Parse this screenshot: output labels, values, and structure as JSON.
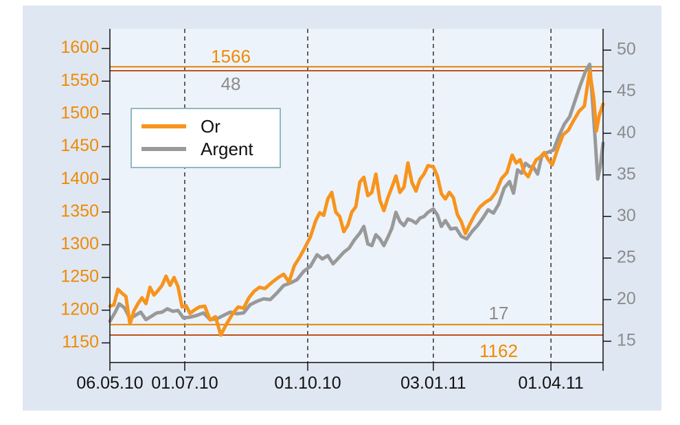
{
  "chart_data": {
    "type": "line",
    "x_labels": [
      "06.05.10",
      "01.07.10",
      "01.10.10",
      "03.01.11",
      "01.04.11"
    ],
    "x_label_dates": [
      "2010-05-06",
      "2010-07-01",
      "2010-10-01",
      "2011-01-03",
      "2011-04-01"
    ],
    "xlim": [
      "2010-05-06",
      "2011-05-10"
    ],
    "left_axis": {
      "ticks": [
        1150,
        1200,
        1250,
        1300,
        1350,
        1400,
        1450,
        1500,
        1550,
        1600
      ],
      "range": [
        1150,
        1600
      ],
      "color": "#f08a00"
    },
    "right_axis": {
      "ticks": [
        15,
        20,
        25,
        30,
        35,
        40,
        45,
        50
      ],
      "range": [
        15,
        50
      ],
      "color": "#8c8c8c"
    },
    "vertical_gridlines": [
      "2010-07-01",
      "2010-10-01",
      "2011-01-03",
      "2011-04-01"
    ],
    "grid": "vertical dashed lines",
    "legend": {
      "placement": "upper-left",
      "entries": [
        "Or",
        "Argent"
      ]
    },
    "series": [
      {
        "name": "Or",
        "axis": "left",
        "color": "#f7941d",
        "points": [
          [
            "2010-05-06",
            1206
          ],
          [
            "2010-05-09",
            1208
          ],
          [
            "2010-05-12",
            1232
          ],
          [
            "2010-05-15",
            1226
          ],
          [
            "2010-05-18",
            1221
          ],
          [
            "2010-05-21",
            1179
          ],
          [
            "2010-05-24",
            1199
          ],
          [
            "2010-05-27",
            1210
          ],
          [
            "2010-05-30",
            1219
          ],
          [
            "2010-06-02",
            1210
          ],
          [
            "2010-06-05",
            1235
          ],
          [
            "2010-06-08",
            1223
          ],
          [
            "2010-06-11",
            1230
          ],
          [
            "2010-06-14",
            1238
          ],
          [
            "2010-06-17",
            1252
          ],
          [
            "2010-06-20",
            1238
          ],
          [
            "2010-06-23",
            1250
          ],
          [
            "2010-06-26",
            1236
          ],
          [
            "2010-06-29",
            1205
          ],
          [
            "2010-07-02",
            1207
          ],
          [
            "2010-07-05",
            1195
          ],
          [
            "2010-07-08",
            1200
          ],
          [
            "2010-07-12",
            1205
          ],
          [
            "2010-07-16",
            1206
          ],
          [
            "2010-07-20",
            1185
          ],
          [
            "2010-07-24",
            1190
          ],
          [
            "2010-07-28",
            1162
          ],
          [
            "2010-08-01",
            1178
          ],
          [
            "2010-08-06",
            1195
          ],
          [
            "2010-08-10",
            1205
          ],
          [
            "2010-08-14",
            1203
          ],
          [
            "2010-08-18",
            1219
          ],
          [
            "2010-08-22",
            1229
          ],
          [
            "2010-08-26",
            1235
          ],
          [
            "2010-08-30",
            1233
          ],
          [
            "2010-09-04",
            1242
          ],
          [
            "2010-09-09",
            1250
          ],
          [
            "2010-09-13",
            1255
          ],
          [
            "2010-09-17",
            1243
          ],
          [
            "2010-09-21",
            1268
          ],
          [
            "2010-09-25",
            1281
          ],
          [
            "2010-09-29",
            1296
          ],
          [
            "2010-10-03",
            1312
          ],
          [
            "2010-10-07",
            1337
          ],
          [
            "2010-10-10",
            1349
          ],
          [
            "2010-10-13",
            1345
          ],
          [
            "2010-10-16",
            1370
          ],
          [
            "2010-10-19",
            1380
          ],
          [
            "2010-10-22",
            1350
          ],
          [
            "2010-10-25",
            1343
          ],
          [
            "2010-10-28",
            1320
          ],
          [
            "2010-10-31",
            1330
          ],
          [
            "2010-11-03",
            1350
          ],
          [
            "2010-11-06",
            1358
          ],
          [
            "2010-11-09",
            1396
          ],
          [
            "2010-11-12",
            1403
          ],
          [
            "2010-11-15",
            1375
          ],
          [
            "2010-11-18",
            1380
          ],
          [
            "2010-11-21",
            1408
          ],
          [
            "2010-11-24",
            1368
          ],
          [
            "2010-11-27",
            1352
          ],
          [
            "2010-11-30",
            1372
          ],
          [
            "2010-12-03",
            1388
          ],
          [
            "2010-12-06",
            1405
          ],
          [
            "2010-12-09",
            1380
          ],
          [
            "2010-12-12",
            1388
          ],
          [
            "2010-12-15",
            1425
          ],
          [
            "2010-12-18",
            1395
          ],
          [
            "2010-12-21",
            1382
          ],
          [
            "2010-12-24",
            1400
          ],
          [
            "2010-12-27",
            1408
          ],
          [
            "2010-12-30",
            1421
          ],
          [
            "2011-01-03",
            1419
          ],
          [
            "2011-01-06",
            1405
          ],
          [
            "2011-01-09",
            1378
          ],
          [
            "2011-01-12",
            1370
          ],
          [
            "2011-01-15",
            1380
          ],
          [
            "2011-01-18",
            1372
          ],
          [
            "2011-01-21",
            1346
          ],
          [
            "2011-01-24",
            1335
          ],
          [
            "2011-01-27",
            1317
          ],
          [
            "2011-01-30",
            1330
          ],
          [
            "2011-02-03",
            1346
          ],
          [
            "2011-02-07",
            1358
          ],
          [
            "2011-02-11",
            1365
          ],
          [
            "2011-02-15",
            1370
          ],
          [
            "2011-02-19",
            1381
          ],
          [
            "2011-02-23",
            1401
          ],
          [
            "2011-02-27",
            1410
          ],
          [
            "2011-03-03",
            1437
          ],
          [
            "2011-03-06",
            1425
          ],
          [
            "2011-03-09",
            1430
          ],
          [
            "2011-03-12",
            1411
          ],
          [
            "2011-03-15",
            1404
          ],
          [
            "2011-03-18",
            1418
          ],
          [
            "2011-03-21",
            1430
          ],
          [
            "2011-03-24",
            1434
          ],
          [
            "2011-03-27",
            1441
          ],
          [
            "2011-03-30",
            1430
          ],
          [
            "2011-04-02",
            1422
          ],
          [
            "2011-04-06",
            1446
          ],
          [
            "2011-04-10",
            1468
          ],
          [
            "2011-04-14",
            1475
          ],
          [
            "2011-04-18",
            1490
          ],
          [
            "2011-04-22",
            1504
          ],
          [
            "2011-04-26",
            1512
          ],
          [
            "2011-04-30",
            1566
          ],
          [
            "2011-05-03",
            1524
          ],
          [
            "2011-05-05",
            1474
          ],
          [
            "2011-05-07",
            1497
          ],
          [
            "2011-05-10",
            1515
          ]
        ],
        "reference_line": {
          "value": 1566,
          "label": "1566"
        },
        "min_line": {
          "value": 1162,
          "label": "1162"
        }
      },
      {
        "name": "Argent",
        "axis": "right",
        "color": "#999999",
        "points": [
          [
            "2010-05-06",
            17.4
          ],
          [
            "2010-05-10",
            18.5
          ],
          [
            "2010-05-13",
            19.5
          ],
          [
            "2010-05-17",
            19.0
          ],
          [
            "2010-05-21",
            17.7
          ],
          [
            "2010-05-25",
            18.1
          ],
          [
            "2010-05-29",
            18.5
          ],
          [
            "2010-06-02",
            17.6
          ],
          [
            "2010-06-06",
            18.0
          ],
          [
            "2010-06-10",
            18.4
          ],
          [
            "2010-06-14",
            18.5
          ],
          [
            "2010-06-18",
            18.9
          ],
          [
            "2010-06-22",
            18.6
          ],
          [
            "2010-06-26",
            18.7
          ],
          [
            "2010-06-30",
            17.8
          ],
          [
            "2010-07-05",
            17.9
          ],
          [
            "2010-07-10",
            18.1
          ],
          [
            "2010-07-15",
            18.4
          ],
          [
            "2010-07-20",
            17.6
          ],
          [
            "2010-07-25",
            17.7
          ],
          [
            "2010-07-30",
            18.1
          ],
          [
            "2010-08-04",
            18.5
          ],
          [
            "2010-08-09",
            18.3
          ],
          [
            "2010-08-14",
            18.4
          ],
          [
            "2010-08-19",
            19.4
          ],
          [
            "2010-08-24",
            19.8
          ],
          [
            "2010-08-29",
            20.1
          ],
          [
            "2010-09-03",
            20.0
          ],
          [
            "2010-09-08",
            20.8
          ],
          [
            "2010-09-13",
            21.7
          ],
          [
            "2010-09-18",
            22.0
          ],
          [
            "2010-09-23",
            22.4
          ],
          [
            "2010-09-28",
            23.4
          ],
          [
            "2010-10-03",
            24.0
          ],
          [
            "2010-10-08",
            25.4
          ],
          [
            "2010-10-12",
            24.9
          ],
          [
            "2010-10-16",
            25.3
          ],
          [
            "2010-10-20",
            24.3
          ],
          [
            "2010-10-24",
            25.0
          ],
          [
            "2010-10-28",
            25.7
          ],
          [
            "2010-11-01",
            26.2
          ],
          [
            "2010-11-05",
            27.2
          ],
          [
            "2010-11-09",
            28.0
          ],
          [
            "2010-11-12",
            28.8
          ],
          [
            "2010-11-15",
            26.7
          ],
          [
            "2010-11-18",
            26.5
          ],
          [
            "2010-11-21",
            27.8
          ],
          [
            "2010-11-24",
            27.3
          ],
          [
            "2010-11-27",
            26.5
          ],
          [
            "2010-11-30",
            27.5
          ],
          [
            "2010-12-03",
            28.6
          ],
          [
            "2010-12-06",
            30.5
          ],
          [
            "2010-12-09",
            29.4
          ],
          [
            "2010-12-12",
            28.9
          ],
          [
            "2010-12-15",
            29.7
          ],
          [
            "2010-12-18",
            29.5
          ],
          [
            "2010-12-21",
            29.2
          ],
          [
            "2010-12-24",
            29.8
          ],
          [
            "2010-12-27",
            30.0
          ],
          [
            "2010-12-30",
            30.5
          ],
          [
            "2011-01-03",
            30.9
          ],
          [
            "2011-01-06",
            30.2
          ],
          [
            "2011-01-09",
            28.8
          ],
          [
            "2011-01-12",
            29.5
          ],
          [
            "2011-01-16",
            28.5
          ],
          [
            "2011-01-20",
            28.6
          ],
          [
            "2011-01-24",
            27.6
          ],
          [
            "2011-01-28",
            27.3
          ],
          [
            "2011-02-01",
            28.2
          ],
          [
            "2011-02-05",
            28.9
          ],
          [
            "2011-02-09",
            29.8
          ],
          [
            "2011-02-13",
            30.8
          ],
          [
            "2011-02-17",
            30.4
          ],
          [
            "2011-02-21",
            31.5
          ],
          [
            "2011-02-25",
            33.4
          ],
          [
            "2011-03-01",
            34.2
          ],
          [
            "2011-03-04",
            32.8
          ],
          [
            "2011-03-07",
            35.6
          ],
          [
            "2011-03-10",
            35.2
          ],
          [
            "2011-03-13",
            36.4
          ],
          [
            "2011-03-16",
            36.0
          ],
          [
            "2011-03-19",
            35.9
          ],
          [
            "2011-03-22",
            35.1
          ],
          [
            "2011-03-25",
            37.2
          ],
          [
            "2011-03-28",
            37.6
          ],
          [
            "2011-03-31",
            37.8
          ],
          [
            "2011-04-03",
            38.0
          ],
          [
            "2011-04-07",
            39.7
          ],
          [
            "2011-04-11",
            41.1
          ],
          [
            "2011-04-15",
            42.0
          ],
          [
            "2011-04-19",
            43.9
          ],
          [
            "2011-04-23",
            45.8
          ],
          [
            "2011-04-27",
            47.5
          ],
          [
            "2011-04-30",
            48.3
          ],
          [
            "2011-05-02",
            44.1
          ],
          [
            "2011-05-04",
            39.5
          ],
          [
            "2011-05-06",
            34.5
          ],
          [
            "2011-05-08",
            36.1
          ],
          [
            "2011-05-10",
            38.8
          ]
        ],
        "reference_line": {
          "value": 48,
          "label": "48"
        },
        "min_line": {
          "value": 17,
          "label": "17"
        }
      }
    ]
  }
}
